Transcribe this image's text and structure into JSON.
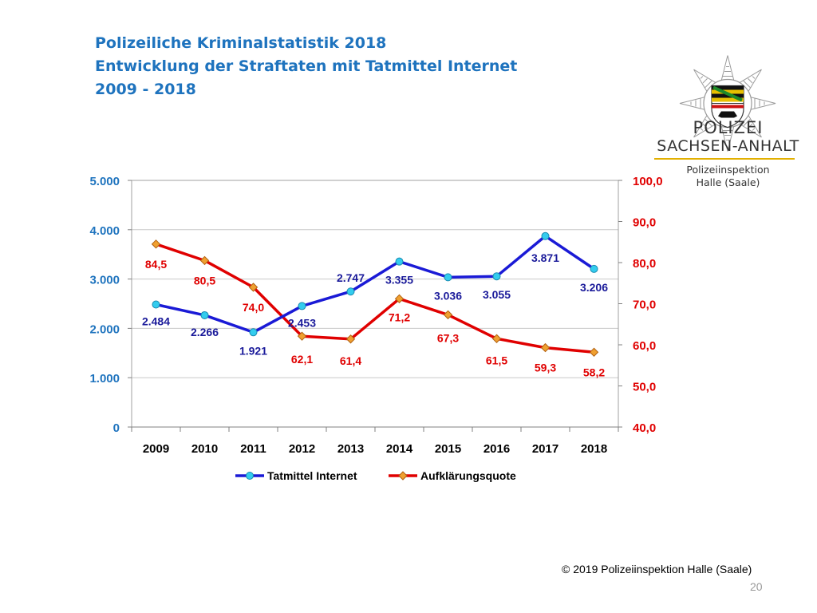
{
  "title_lines": [
    "Polizeiliche Kriminalstatistik 2018",
    "Entwicklung der Straftaten mit Tatmittel Internet",
    "2009 - 2018"
  ],
  "logo": {
    "line1": "POLIZEI",
    "line2": "SACHSEN-ANHALT",
    "line3": "Polizeiinspektion",
    "line4": "Halle (Saale)",
    "accent_color": "#e2b000"
  },
  "footer": {
    "copyright": "© 2019 Polizeiinspektion Halle (Saale)",
    "page_number": "20"
  },
  "chart_data": {
    "type": "line",
    "categories": [
      "2009",
      "2010",
      "2011",
      "2012",
      "2013",
      "2014",
      "2015",
      "2016",
      "2017",
      "2018"
    ],
    "y_left": {
      "min": 0,
      "max": 5000,
      "ticks": [
        0,
        1000,
        2000,
        3000,
        4000,
        5000
      ],
      "tick_labels": [
        "0",
        "1.000",
        "2.000",
        "3.000",
        "4.000",
        "5.000"
      ],
      "color": "#1e73be"
    },
    "y_right": {
      "min": 40,
      "max": 100,
      "ticks": [
        40,
        50,
        60,
        70,
        80,
        90,
        100
      ],
      "tick_labels": [
        "40,0",
        "50,0",
        "60,0",
        "70,0",
        "80,0",
        "90,0",
        "100,0"
      ],
      "color": "#e00000"
    },
    "grid": true,
    "legend_position": "bottom",
    "series": [
      {
        "name": "Tatmittel Internet",
        "axis": "left",
        "color": "#1a1ad6",
        "marker_color": "#33ccee",
        "marker": "circle",
        "values": [
          2484,
          2266,
          1921,
          2453,
          2747,
          3355,
          3036,
          3055,
          3871,
          3206
        ],
        "labels": [
          "2.484",
          "2.266",
          "1.921",
          "2.453",
          "2.747",
          "3.355",
          "3.036",
          "3.055",
          "3.871",
          "3.206"
        ]
      },
      {
        "name": "Aufklärungsquote",
        "axis": "right",
        "color": "#e00000",
        "marker_color": "#f0a030",
        "marker": "diamond",
        "values": [
          84.5,
          80.5,
          74.0,
          62.1,
          61.4,
          71.2,
          67.3,
          61.5,
          59.3,
          58.2
        ],
        "labels": [
          "84,5",
          "80,5",
          "74,0",
          "62,1",
          "61,4",
          "71,2",
          "67,3",
          "61,5",
          "59,3",
          "58,2"
        ]
      }
    ]
  }
}
